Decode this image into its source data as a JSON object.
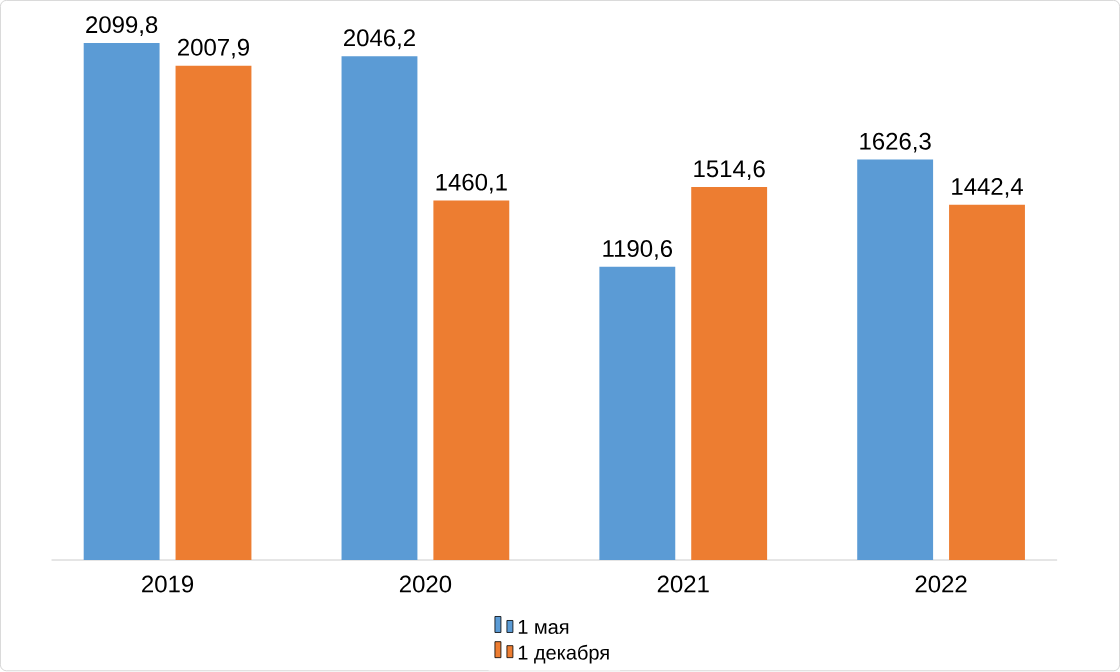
{
  "chart_data": {
    "type": "bar",
    "categories": [
      "2019",
      "2020",
      "2021",
      "2022"
    ],
    "series": [
      {
        "name": "1 мая",
        "color": "#5b9bd5",
        "values": [
          2099.8,
          2046.2,
          1190.6,
          1626.3
        ],
        "value_labels": [
          "2099,8",
          "2046,2",
          "1190,6",
          "1626,3"
        ]
      },
      {
        "name": "1 декабря",
        "color": "#ed7d31",
        "values": [
          2007.9,
          1460.1,
          1514.6,
          1442.4
        ],
        "value_labels": [
          "2007,9",
          "1460,1",
          "1514,6",
          "1442,4"
        ]
      }
    ],
    "legend": "bottom"
  }
}
